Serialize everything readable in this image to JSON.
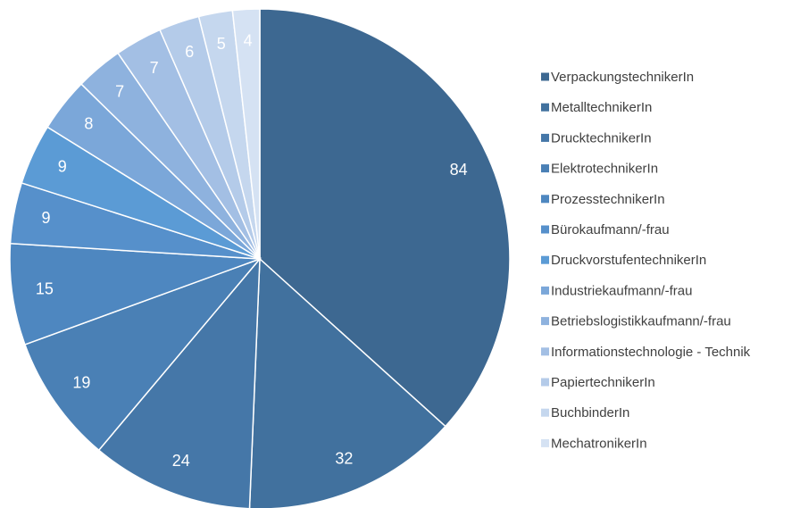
{
  "chart_data": {
    "type": "pie",
    "categories": [
      "VerpackungstechnikerIn",
      "MetalltechnikerIn",
      "DrucktechnikerIn",
      "ElektrotechnikerIn",
      "ProzesstechnikerIn",
      "Bürokaufmann/-frau",
      "DruckvorstufentechnikerIn",
      "Industriekaufmann/-frau",
      "Betriebslogistikkaufmann/-frau",
      "Informationstechnologie - Technik",
      "PapiertechnikerIn",
      "BuchbinderIn",
      "MechatronikerIn"
    ],
    "values": [
      84,
      32,
      24,
      19,
      15,
      9,
      9,
      8,
      7,
      7,
      6,
      5,
      4
    ],
    "colors": [
      "#3d6891",
      "#41719e",
      "#4577a8",
      "#4a80b5",
      "#4e87c0",
      "#5690cb",
      "#5b9bd5",
      "#7ba7d9",
      "#8eb2de",
      "#a3bfe4",
      "#b4cbe9",
      "#c5d7ee",
      "#d5e2f3"
    ],
    "legend": "right"
  }
}
